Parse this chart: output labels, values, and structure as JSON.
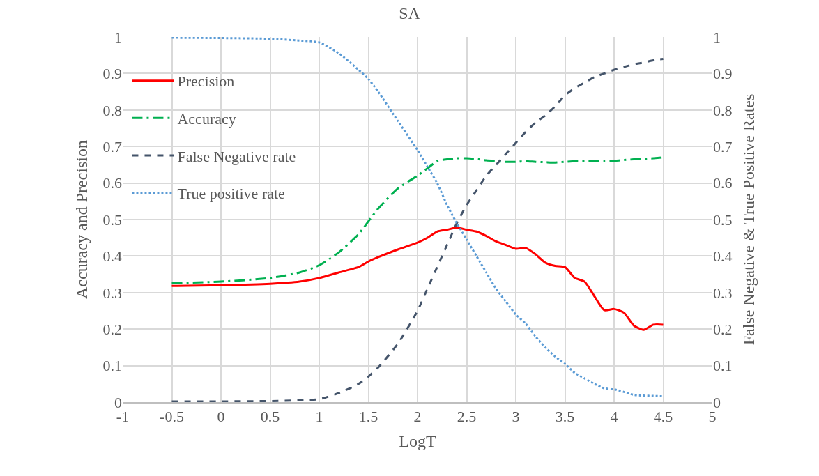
{
  "chart_data": {
    "type": "line",
    "title": "SA",
    "xlabel": "LogT",
    "ylabel": "Accuracy and Precision",
    "y2label": "False Negative & True Positive Rates",
    "x": [
      -0.5,
      0,
      0.5,
      0.8,
      1,
      1.2,
      1.4,
      1.5,
      1.6,
      1.8,
      2,
      2.1,
      2.2,
      2.3,
      2.4,
      2.5,
      2.6,
      2.7,
      2.8,
      2.9,
      3,
      3.1,
      3.2,
      3.3,
      3.4,
      3.5,
      3.6,
      3.7,
      3.8,
      3.9,
      4,
      4.1,
      4.2,
      4.3,
      4.4,
      4.5
    ],
    "series": [
      {
        "name": "Precision",
        "color": "#ff0000",
        "line_style": "solid",
        "values": [
          0.318,
          0.32,
          0.324,
          0.33,
          0.34,
          0.355,
          0.37,
          0.385,
          0.397,
          0.418,
          0.437,
          0.45,
          0.467,
          0.472,
          0.478,
          0.472,
          0.467,
          0.455,
          0.44,
          0.43,
          0.42,
          0.422,
          0.405,
          0.382,
          0.373,
          0.37,
          0.34,
          0.33,
          0.29,
          0.252,
          0.255,
          0.245,
          0.21,
          0.198,
          0.212,
          0.212
        ]
      },
      {
        "name": "Accuracy",
        "color": "#00b050",
        "line_style": "dashdot",
        "values": [
          0.326,
          0.33,
          0.34,
          0.355,
          0.375,
          0.41,
          0.46,
          0.495,
          0.53,
          0.585,
          0.62,
          0.64,
          0.66,
          0.665,
          0.668,
          0.668,
          0.666,
          0.662,
          0.66,
          0.658,
          0.658,
          0.66,
          0.658,
          0.657,
          0.656,
          0.658,
          0.66,
          0.66,
          0.66,
          0.66,
          0.661,
          0.663,
          0.665,
          0.666,
          0.668,
          0.67
        ]
      },
      {
        "name": "False Negative rate",
        "color": "#44546a",
        "line_style": "dashed",
        "axis": "y2",
        "values": [
          0.002,
          0.002,
          0.003,
          0.005,
          0.008,
          0.025,
          0.05,
          0.07,
          0.095,
          0.16,
          0.25,
          0.31,
          0.37,
          0.43,
          0.49,
          0.54,
          0.58,
          0.62,
          0.65,
          0.68,
          0.71,
          0.74,
          0.765,
          0.785,
          0.81,
          0.84,
          0.86,
          0.875,
          0.89,
          0.9,
          0.91,
          0.918,
          0.925,
          0.93,
          0.936,
          0.94
        ]
      },
      {
        "name": "True positive rate",
        "color": "#5b9bd5",
        "line_style": "dotted",
        "axis": "y2",
        "values": [
          0.998,
          0.997,
          0.995,
          0.99,
          0.985,
          0.955,
          0.91,
          0.885,
          0.85,
          0.77,
          0.69,
          0.645,
          0.6,
          0.54,
          0.49,
          0.445,
          0.4,
          0.355,
          0.31,
          0.275,
          0.24,
          0.215,
          0.18,
          0.15,
          0.125,
          0.105,
          0.08,
          0.065,
          0.05,
          0.038,
          0.035,
          0.028,
          0.02,
          0.018,
          0.017,
          0.016
        ]
      }
    ],
    "xlim": [
      -1,
      5
    ],
    "xticks": [
      -1,
      -0.5,
      0,
      0.5,
      1,
      1.5,
      2,
      2.5,
      3,
      3.5,
      4,
      4.5,
      5
    ],
    "ylim": [
      0,
      1
    ],
    "yticks": [
      0,
      0.1,
      0.2,
      0.3,
      0.4,
      0.5,
      0.6,
      0.7,
      0.8,
      0.9,
      1
    ],
    "y2lim": [
      0,
      1
    ],
    "y2ticks": [
      0,
      0.1,
      0.2,
      0.3,
      0.4,
      0.5,
      0.6,
      0.7,
      0.8,
      0.9,
      1
    ],
    "grid": true,
    "legend": "top left",
    "marker": "none"
  }
}
